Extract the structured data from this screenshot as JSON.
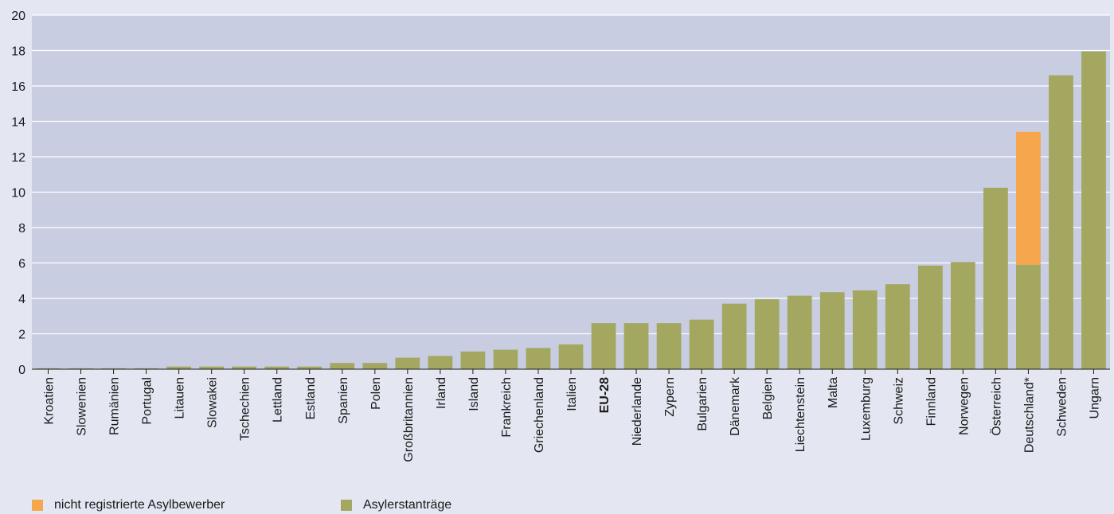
{
  "chart_data": {
    "type": "bar",
    "stacked": true,
    "ylim": [
      0,
      20
    ],
    "yticks": [
      0,
      2,
      4,
      6,
      8,
      10,
      12,
      14,
      16,
      18,
      20
    ],
    "grid": true,
    "legend_position": "bottom-left",
    "bold_categories": [
      "EU-28"
    ],
    "categories": [
      "Kroatien",
      "Slowenien",
      "Rumänien",
      "Portugal",
      "Litauen",
      "Slowakei",
      "Tschechien",
      "Lettland",
      "Estland",
      "Spanien",
      "Polen",
      "Großbritannien",
      "Irland",
      "Island",
      "Frankreich",
      "Griechenland",
      "Italien",
      "EU-28",
      "Niederlande",
      "Zypern",
      "Bulgarien",
      "Dänemark",
      "Belgien",
      "Liechtenstein",
      "Malta",
      "Luxemburg",
      "Schweiz",
      "Finnland",
      "Norwegen",
      "Österreich",
      "Deutschland*",
      "Schweden",
      "Ungarn"
    ],
    "series": [
      {
        "name": "Asylerstanträge",
        "color": "#a3a760",
        "values": [
          0.05,
          0.05,
          0.05,
          0.05,
          0.15,
          0.15,
          0.15,
          0.15,
          0.15,
          0.35,
          0.35,
          0.65,
          0.75,
          1.0,
          1.1,
          1.2,
          1.4,
          2.6,
          2.6,
          2.6,
          2.8,
          3.7,
          3.95,
          4.15,
          4.35,
          4.45,
          4.8,
          5.85,
          6.05,
          10.25,
          5.9,
          16.6,
          17.95
        ]
      },
      {
        "name": "nicht registrierte Asylbewerber",
        "color": "#f6a64c",
        "values": [
          0,
          0,
          0,
          0,
          0,
          0,
          0,
          0,
          0,
          0,
          0,
          0,
          0,
          0,
          0,
          0,
          0,
          0,
          0,
          0,
          0,
          0,
          0,
          0,
          0,
          0,
          0,
          0,
          0,
          0,
          7.5,
          0,
          0
        ]
      }
    ]
  },
  "legend": {
    "items": [
      {
        "label": "nicht registrierte Asylbewerber",
        "color": "#f6a64c"
      },
      {
        "label": "Asylerstanträge",
        "color": "#a3a760"
      }
    ]
  },
  "colors": {
    "plot_bg": "#c8cde2",
    "grid": "#ffffff",
    "page_bg": "#e4e7f2"
  }
}
